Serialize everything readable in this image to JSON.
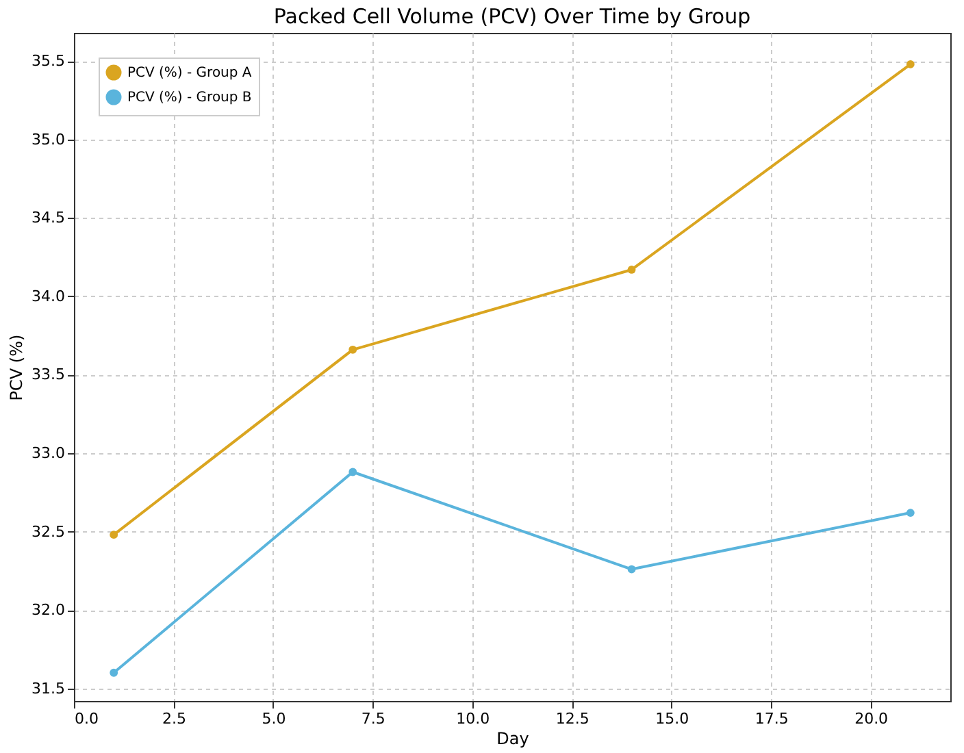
{
  "chart_data": {
    "type": "line",
    "title": "Packed Cell Volume (PCV) Over Time by Group",
    "xlabel": "Day",
    "ylabel": "PCV (%)",
    "x": [
      1,
      7,
      14,
      21
    ],
    "series": [
      {
        "name": "PCV (%) - Group A",
        "color": "#daa520",
        "values": [
          32.48,
          33.66,
          34.17,
          35.48
        ]
      },
      {
        "name": "PCV (%) - Group B",
        "color": "#5ab4dc",
        "values": [
          31.6,
          32.88,
          32.26,
          32.62
        ]
      }
    ],
    "xlim": [
      0,
      22
    ],
    "xticks": [
      {
        "value": 0,
        "label": "0.0"
      },
      {
        "value": 2.5,
        "label": "2.5"
      },
      {
        "value": 5,
        "label": "5.0"
      },
      {
        "value": 7.5,
        "label": "7.5"
      },
      {
        "value": 10,
        "label": "10.0"
      },
      {
        "value": 12.5,
        "label": "12.5"
      },
      {
        "value": 15,
        "label": "15.0"
      },
      {
        "value": 17.5,
        "label": "17.5"
      },
      {
        "value": 20,
        "label": "20.0"
      }
    ],
    "ylim": [
      31.42,
      35.68
    ],
    "yticks": [
      31.5,
      {
        "value": 32,
        "label": "32.0"
      },
      32.5,
      {
        "value": 33,
        "label": "33.0"
      },
      33.5,
      {
        "value": 34,
        "label": "34.0"
      },
      34.5,
      {
        "value": 35,
        "label": "35.0"
      },
      35.5
    ],
    "grid": true,
    "legend": "top left",
    "marker": "circle",
    "line_style": "solid"
  }
}
